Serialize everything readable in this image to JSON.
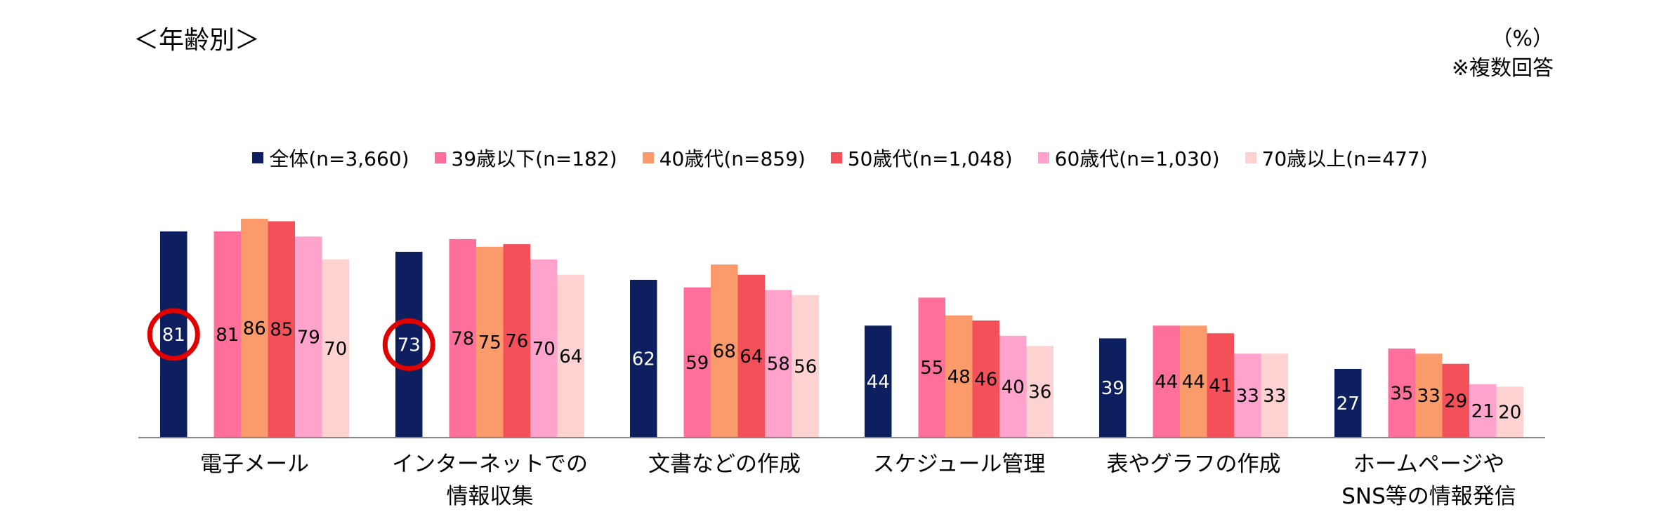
{
  "title": "＜年齢別＞",
  "unit": "（%）",
  "note": "※複数回答",
  "chart_data": {
    "type": "bar",
    "categories": [
      [
        "電子メール"
      ],
      [
        "インターネットでの",
        "情報収集"
      ],
      [
        "文書などの作成"
      ],
      [
        "スケジュール管理"
      ],
      [
        "表やグラフの作成"
      ],
      [
        "ホームページや",
        "SNS等の情報発信"
      ]
    ],
    "series": [
      {
        "name": "全体(n=3,660)",
        "color": "#0d1f5e",
        "values": [
          81,
          73,
          62,
          44,
          39,
          27
        ]
      },
      {
        "name": "39歳以下(n=182)",
        "color": "#ff6f9c",
        "values": [
          81,
          78,
          59,
          55,
          44,
          35
        ]
      },
      {
        "name": "40歳代(n=859)",
        "color": "#fb9a6a",
        "values": [
          86,
          75,
          68,
          48,
          44,
          33
        ]
      },
      {
        "name": "50歳代(n=1,048)",
        "color": "#f4505a",
        "values": [
          85,
          76,
          64,
          46,
          41,
          29
        ]
      },
      {
        "name": "60歳代(n=1,030)",
        "color": "#ffa3cd",
        "values": [
          79,
          70,
          58,
          40,
          33,
          21
        ]
      },
      {
        "name": "70歳以上(n=477)",
        "color": "#ffd2d2",
        "values": [
          70,
          64,
          56,
          36,
          33,
          20
        ]
      }
    ],
    "highlighted": [
      {
        "category": 0,
        "series": 0
      },
      {
        "category": 1,
        "series": 0
      }
    ],
    "highlight_color": "#e00000",
    "ylim": [
      0,
      100
    ],
    "grid": false,
    "legend": "top"
  }
}
